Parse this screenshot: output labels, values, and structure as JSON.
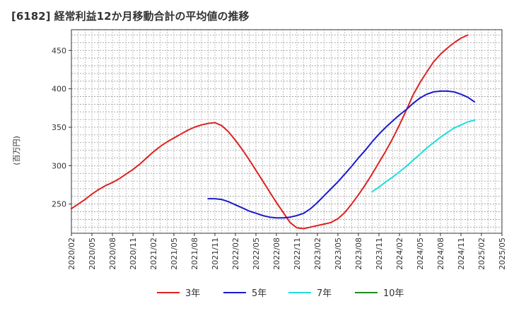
{
  "chart_data": {
    "type": "line",
    "title": "[6182]  経常利益12か月移動合計の平均値の推移",
    "ylabel": "(百万円)",
    "xlabel": "",
    "ylim": [
      212,
      477
    ],
    "yticks": [
      250,
      300,
      350,
      400,
      450
    ],
    "xticks": [
      "2020/02",
      "2020/05",
      "2020/08",
      "2020/11",
      "2021/02",
      "2021/05",
      "2021/08",
      "2021/11",
      "2022/02",
      "2022/05",
      "2022/08",
      "2022/11",
      "2023/02",
      "2023/05",
      "2023/08",
      "2023/11",
      "2024/02",
      "2024/05",
      "2024/08",
      "2024/11",
      "2025/02",
      "2025/05"
    ],
    "grid": true,
    "legend_position": "bottom",
    "series": [
      {
        "name": "3年",
        "color": "#dd2222",
        "x": [
          "2020/02",
          "2020/03",
          "2020/04",
          "2020/05",
          "2020/06",
          "2020/07",
          "2020/08",
          "2020/09",
          "2020/10",
          "2020/11",
          "2020/12",
          "2021/01",
          "2021/02",
          "2021/03",
          "2021/04",
          "2021/05",
          "2021/06",
          "2021/07",
          "2021/08",
          "2021/09",
          "2021/10",
          "2021/11",
          "2021/12",
          "2022/01",
          "2022/02",
          "2022/03",
          "2022/04",
          "2022/05",
          "2022/06",
          "2022/07",
          "2022/08",
          "2022/09",
          "2022/10",
          "2022/11",
          "2022/12",
          "2023/01",
          "2023/02",
          "2023/03",
          "2023/04",
          "2023/05",
          "2023/06",
          "2023/07",
          "2023/08",
          "2023/09",
          "2023/10",
          "2023/11",
          "2023/12",
          "2024/01",
          "2024/02",
          "2024/03",
          "2024/04",
          "2024/05",
          "2024/06",
          "2024/07",
          "2024/08",
          "2024/09",
          "2024/10",
          "2024/11",
          "2024/12",
          "2025/01",
          "2025/02"
        ],
        "values": [
          244,
          250,
          256,
          263,
          269,
          274,
          278,
          283,
          289,
          295,
          302,
          310,
          318,
          325,
          331,
          336,
          341,
          346,
          350,
          353,
          355,
          356,
          352,
          344,
          333,
          321,
          308,
          294,
          280,
          266,
          252,
          239,
          226,
          219,
          218,
          220,
          222,
          224,
          226,
          231,
          239,
          250,
          262,
          275,
          289,
          304,
          319,
          335,
          353,
          372,
          392,
          408,
          422,
          435,
          445,
          453,
          460,
          466,
          470,
          null,
          null
        ],
        "note_last_index": 58
      },
      {
        "name": "5年",
        "color": "#1a1acc",
        "x": [
          "2021/10",
          "2021/11",
          "2021/12",
          "2022/01",
          "2022/02",
          "2022/03",
          "2022/04",
          "2022/05",
          "2022/06",
          "2022/07",
          "2022/08",
          "2022/09",
          "2022/10",
          "2022/11",
          "2022/12",
          "2023/01",
          "2023/02",
          "2023/03",
          "2023/04",
          "2023/05",
          "2023/06",
          "2023/07",
          "2023/08",
          "2023/09",
          "2023/10",
          "2023/11",
          "2023/12",
          "2024/01",
          "2024/02",
          "2024/03",
          "2024/04",
          "2024/05",
          "2024/06",
          "2024/07",
          "2024/08",
          "2024/09",
          "2024/10",
          "2024/11",
          "2024/12",
          "2025/01",
          "2025/02"
        ],
        "values": [
          257,
          257,
          256,
          253,
          249,
          245,
          241,
          238,
          235,
          233,
          232,
          232,
          233,
          235,
          238,
          244,
          252,
          261,
          270,
          279,
          289,
          299,
          310,
          320,
          331,
          341,
          350,
          358,
          366,
          373,
          381,
          388,
          393,
          396,
          397,
          397,
          396,
          393,
          389,
          383,
          null
        ]
      },
      {
        "name": "7年",
        "color": "#22dddd",
        "x": [
          "2023/10",
          "2023/11",
          "2023/12",
          "2024/01",
          "2024/02",
          "2024/03",
          "2024/04",
          "2024/05",
          "2024/06",
          "2024/07",
          "2024/08",
          "2024/09",
          "2024/10",
          "2024/11",
          "2024/12",
          "2025/01",
          "2025/02"
        ],
        "values": [
          266,
          272,
          279,
          285,
          292,
          299,
          307,
          315,
          323,
          330,
          337,
          343,
          349,
          353,
          357,
          359,
          null
        ]
      },
      {
        "name": "10年",
        "color": "#228b22",
        "x": [],
        "values": []
      }
    ]
  }
}
